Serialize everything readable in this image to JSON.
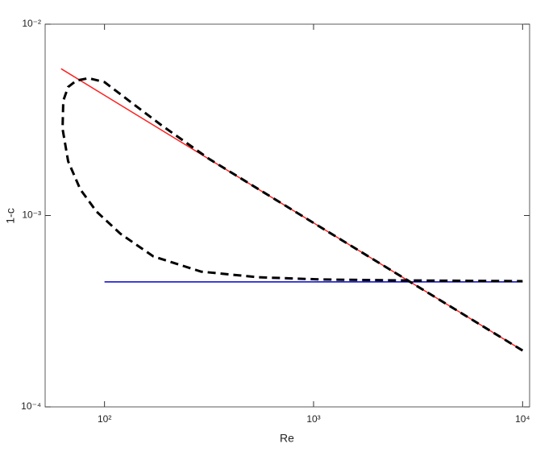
{
  "chart_data": {
    "type": "line",
    "xlabel": "Re",
    "ylabel": "1-c",
    "xscale": "log",
    "yscale": "log",
    "xlim": [
      52,
      10800
    ],
    "ylim": [
      0.0001,
      0.01
    ],
    "xticks": [
      {
        "value": 100,
        "label": "10²"
      },
      {
        "value": 1000,
        "label": "10³"
      },
      {
        "value": 10000,
        "label": "10⁴"
      }
    ],
    "yticks": [
      {
        "value": 0.0001,
        "label": "10⁻⁴"
      },
      {
        "value": 0.001,
        "label": "10⁻³"
      },
      {
        "value": 0.01,
        "label": "10⁻²"
      }
    ],
    "series": [
      {
        "color": "#0000cc",
        "dash": "solid",
        "x": [
          100,
          10000
        ],
        "values": [
          0.00045,
          0.00045
        ]
      },
      {
        "color": "#ff2020",
        "dash": "solid",
        "x": [
          62,
          100,
          1000,
          10000
        ],
        "values": [
          0.00585,
          0.00425,
          0.000915,
          0.000197
        ]
      },
      {
        "color": "#000000",
        "dash": "dashed",
        "x": [
          10000,
          1000,
          318,
          186,
          131,
          100,
          83.8,
          73.3,
          67,
          63.5,
          63,
          67,
          76.6,
          91.5,
          119,
          171,
          290,
          542,
          1100,
          2690,
          10000
        ],
        "values": [
          0.000197,
          0.000915,
          0.00197,
          0.00298,
          0.00398,
          0.00498,
          0.00522,
          0.00507,
          0.0047,
          0.00398,
          0.00284,
          0.00192,
          0.00137,
          0.00105,
          0.000804,
          0.000612,
          0.000509,
          0.000476,
          0.000463,
          0.000458,
          0.000454
        ]
      }
    ]
  }
}
